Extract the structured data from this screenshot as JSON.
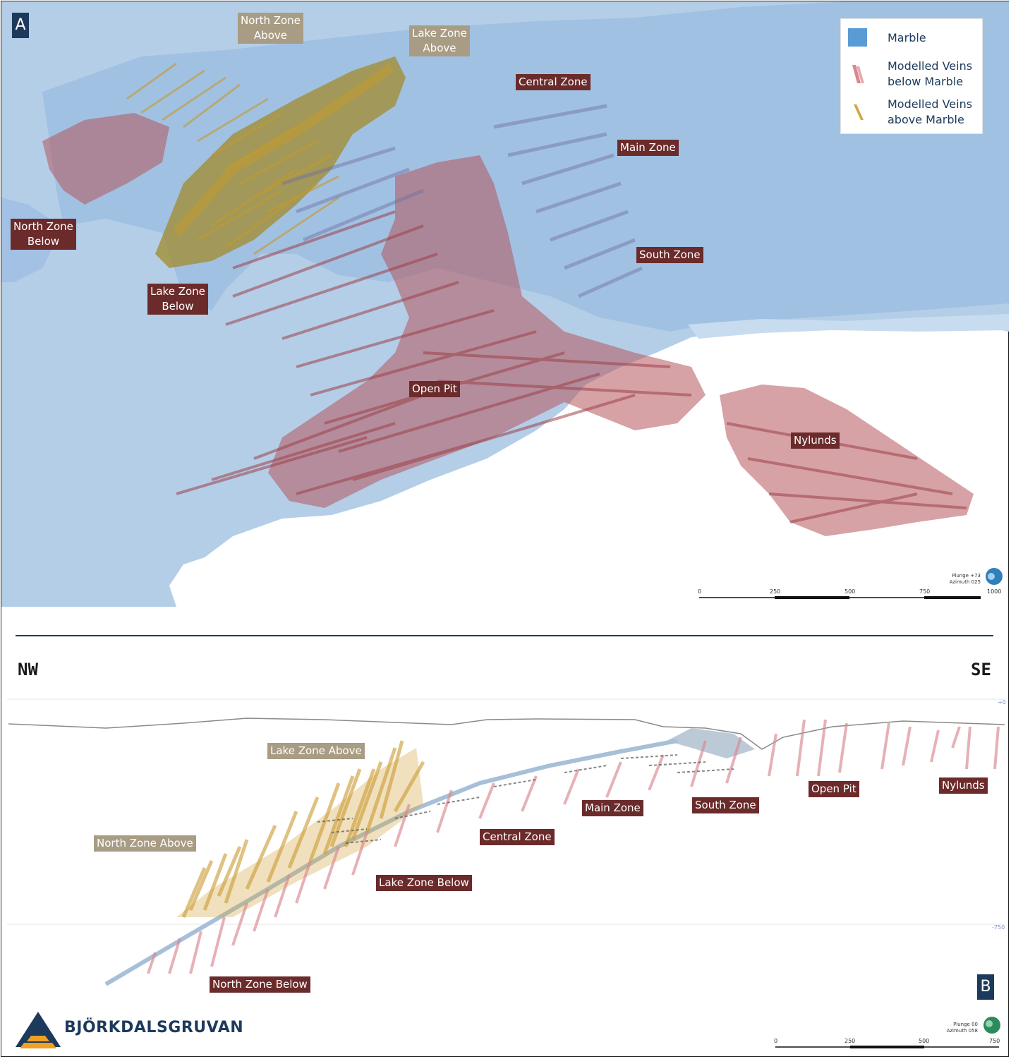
{
  "panel_a": {
    "badge": "A",
    "labels": {
      "north_zone_above": "North Zone\nAbove",
      "lake_zone_above": "Lake Zone\nAbove",
      "central_zone": "Central Zone",
      "main_zone": "Main Zone",
      "south_zone": "South Zone",
      "north_zone_below": "North Zone\nBelow",
      "lake_zone_below": "Lake Zone\nBelow",
      "open_pit": "Open Pit",
      "nylunds": "Nylunds"
    },
    "legend": {
      "marble": "Marble",
      "veins_below": "Modelled Veins\nbelow Marble",
      "veins_above": "Modelled Veins\nabove Marble"
    },
    "orientation": "Plunge +73\nAzimuth 025",
    "scale_ticks": [
      "0",
      "250",
      "500",
      "750",
      "1000"
    ]
  },
  "panel_b": {
    "badge": "B",
    "direction_left": "NW",
    "direction_right": "SE",
    "elevation_top": "+0",
    "elevation_mid": "-750",
    "labels": {
      "lake_zone_above": "Lake Zone Above",
      "north_zone_above": "North Zone Above",
      "central_zone": "Central Zone",
      "main_zone": "Main Zone",
      "south_zone": "South Zone",
      "open_pit": "Open Pit",
      "nylunds": "Nylunds",
      "lake_zone_below": "Lake Zone Below",
      "north_zone_below": "North Zone Below"
    },
    "orientation": "Plunge 00\nAzimuth 058",
    "scale_ticks": [
      "0",
      "250",
      "500",
      "750"
    ]
  },
  "logo": {
    "name": "BJÖRKDALSGRUVAN"
  },
  "colors": {
    "marble": "#5b9bd5",
    "veins_below": "#b5555d",
    "veins_above": "#c49a2c",
    "label_below": "#6b2b2b",
    "label_above": "#a99c84",
    "brand": "#1d3a5c"
  }
}
